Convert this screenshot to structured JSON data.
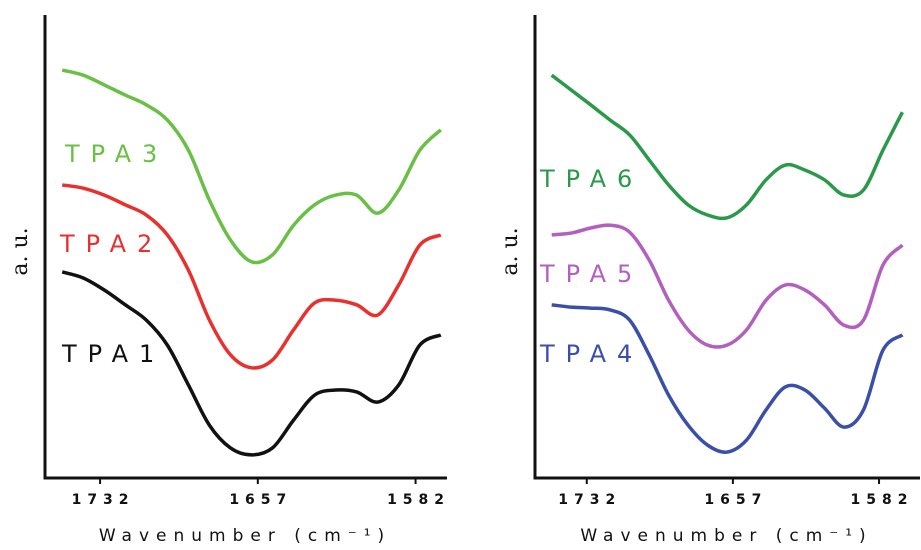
{
  "chart_data": [
    {
      "type": "line",
      "y_label": "a. u.",
      "x_label": "Wavenumber (cm⁻¹)",
      "x": [
        1750,
        1740,
        1730,
        1720,
        1710,
        1700,
        1690,
        1680,
        1670,
        1660,
        1650,
        1640,
        1630,
        1620,
        1610,
        1600,
        1590,
        1580,
        1570
      ],
      "xlim": [
        1752,
        1568
      ],
      "xticks": [
        1732,
        1657,
        1582
      ],
      "ylim": [
        0,
        100
      ],
      "series": [
        {
          "name": "TPA3",
          "color": "#6abf45",
          "values": [
            88.1,
            87.0,
            84.9,
            82.7,
            80.6,
            77.3,
            70.8,
            60.0,
            51.4,
            46.7,
            48.2,
            54.6,
            59.0,
            61.1,
            61.1,
            57.2,
            62.2,
            70.8,
            75.2
          ]
        },
        {
          "name": "TPA2",
          "color": "#e8312f",
          "values": [
            63.3,
            62.6,
            61.1,
            59.0,
            56.8,
            52.5,
            44.9,
            34.1,
            26.6,
            23.8,
            25.5,
            32.0,
            37.8,
            38.4,
            37.4,
            35.2,
            41.7,
            50.3,
            52.5
          ]
        },
        {
          "name": "TPA1",
          "color": "#111111",
          "values": [
            44.5,
            43.2,
            40.6,
            37.4,
            34.1,
            28.7,
            20.1,
            11.4,
            6.5,
            5.0,
            6.5,
            12.5,
            17.9,
            19.0,
            18.6,
            16.4,
            20.1,
            28.7,
            30.9
          ]
        }
      ]
    },
    {
      "type": "line",
      "y_label": "a. u.",
      "x_label": "Wavenumber (cm⁻¹)",
      "x": [
        1750,
        1740,
        1730,
        1720,
        1710,
        1700,
        1690,
        1680,
        1670,
        1660,
        1650,
        1640,
        1630,
        1620,
        1610,
        1600,
        1590,
        1580,
        1570
      ],
      "xlim": [
        1756,
        1562
      ],
      "xticks": [
        1732,
        1657,
        1582
      ],
      "ylim": [
        0,
        100
      ],
      "series": [
        {
          "name": "TPA6",
          "color": "#2a9a4a",
          "values": [
            87.0,
            83.8,
            80.6,
            77.3,
            74.1,
            68.7,
            63.3,
            59.0,
            56.8,
            56.2,
            59.0,
            64.4,
            67.6,
            66.5,
            64.4,
            61.1,
            62.2,
            70.8,
            79.0
          ]
        },
        {
          "name": "TPA5",
          "color": "#b35fbf",
          "values": [
            52.5,
            52.9,
            54.0,
            54.6,
            53.1,
            47.1,
            38.4,
            32.0,
            28.7,
            28.7,
            32.0,
            38.4,
            41.7,
            40.6,
            37.4,
            33.0,
            34.1,
            46.0,
            50.3
          ]
        },
        {
          "name": "TPA4",
          "color": "#3a4fa8",
          "values": [
            37.4,
            36.9,
            36.7,
            36.3,
            34.1,
            26.6,
            17.9,
            11.4,
            7.1,
            5.6,
            8.2,
            14.7,
            19.7,
            19.0,
            15.1,
            11.0,
            14.7,
            27.6,
            30.9
          ]
        }
      ]
    }
  ]
}
